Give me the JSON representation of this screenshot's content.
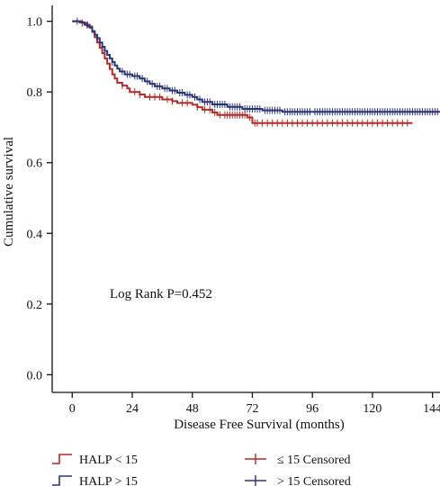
{
  "chart_data": {
    "type": "line",
    "subtype": "kaplan-meier",
    "title": "",
    "xlabel": "Disease Free Survival (months)",
    "ylabel": "Cumulative survival",
    "xlim": [
      -8,
      147
    ],
    "ylim": [
      -0.05,
      1.045
    ],
    "xticks": [
      0,
      24,
      48,
      72,
      96,
      120,
      144
    ],
    "xtick_labels": [
      "0",
      "24",
      "48",
      "72",
      "96",
      "120",
      "144"
    ],
    "yticks": [
      0.0,
      0.2,
      0.4,
      0.6,
      0.8,
      1.0
    ],
    "ytick_labels": [
      "0.0",
      "0.2",
      "0.4",
      "0.6",
      "0.8",
      "1.0"
    ],
    "grid": false,
    "annotation": "Log Rank P=0.452",
    "legend_position": "bottom",
    "series": [
      {
        "name": "HALP < 15",
        "censored_label": "≤ 15 Censored",
        "color": "#b22a2a",
        "steps": [
          [
            0,
            1.0
          ],
          [
            4,
            0.995
          ],
          [
            6,
            0.985
          ],
          [
            8,
            0.97
          ],
          [
            9,
            0.955
          ],
          [
            10,
            0.94
          ],
          [
            11,
            0.925
          ],
          [
            12,
            0.91
          ],
          [
            13,
            0.895
          ],
          [
            14,
            0.88
          ],
          [
            15,
            0.865
          ],
          [
            16,
            0.85
          ],
          [
            17,
            0.838
          ],
          [
            18,
            0.826
          ],
          [
            20,
            0.818
          ],
          [
            22,
            0.81
          ],
          [
            23,
            0.8
          ],
          [
            27,
            0.793
          ],
          [
            29,
            0.786
          ],
          [
            36,
            0.779
          ],
          [
            40,
            0.774
          ],
          [
            42,
            0.769
          ],
          [
            48,
            0.764
          ],
          [
            50,
            0.757
          ],
          [
            52,
            0.75
          ],
          [
            56,
            0.742
          ],
          [
            58,
            0.735
          ],
          [
            70,
            0.728
          ],
          [
            72,
            0.712
          ],
          [
            136,
            0.712
          ]
        ],
        "censored_x": [
          4,
          20,
          25,
          27,
          31,
          33,
          35,
          38,
          40,
          44,
          46,
          50,
          53,
          55,
          57,
          59,
          61,
          62,
          63,
          64,
          65,
          66,
          67,
          68,
          69,
          71,
          73,
          74,
          76,
          78,
          80,
          82,
          84,
          86,
          88,
          90,
          92,
          94,
          96,
          98,
          100,
          102,
          104,
          106,
          108,
          110,
          112,
          114,
          116,
          118,
          120,
          122,
          124,
          126,
          128,
          130,
          132,
          134
        ]
      },
      {
        "name": "HALP > 15",
        "censored_label": "> 15 Censored",
        "color": "#2a3478",
        "steps": [
          [
            0,
            1.0
          ],
          [
            3,
            0.997
          ],
          [
            5,
            0.99
          ],
          [
            7,
            0.982
          ],
          [
            8,
            0.972
          ],
          [
            9,
            0.962
          ],
          [
            10,
            0.952
          ],
          [
            11,
            0.94
          ],
          [
            12,
            0.928
          ],
          [
            13,
            0.916
          ],
          [
            14,
            0.905
          ],
          [
            15,
            0.895
          ],
          [
            16,
            0.885
          ],
          [
            17,
            0.875
          ],
          [
            18,
            0.866
          ],
          [
            19,
            0.858
          ],
          [
            21,
            0.85
          ],
          [
            24,
            0.845
          ],
          [
            27,
            0.838
          ],
          [
            29,
            0.83
          ],
          [
            31,
            0.823
          ],
          [
            33,
            0.816
          ],
          [
            36,
            0.81
          ],
          [
            39,
            0.804
          ],
          [
            42,
            0.798
          ],
          [
            45,
            0.792
          ],
          [
            48,
            0.786
          ],
          [
            50,
            0.779
          ],
          [
            52,
            0.772
          ],
          [
            56,
            0.765
          ],
          [
            62,
            0.758
          ],
          [
            68,
            0.752
          ],
          [
            76,
            0.748
          ],
          [
            84,
            0.744
          ],
          [
            147,
            0.744
          ]
        ],
        "censored_x": [
          2,
          6,
          10,
          16,
          20,
          22,
          23,
          25,
          26,
          28,
          30,
          32,
          34,
          35,
          37,
          38,
          40,
          41,
          43,
          44,
          46,
          47,
          49,
          51,
          53,
          54,
          55,
          57,
          58,
          59,
          60,
          61,
          63,
          64,
          65,
          66,
          67,
          69,
          70,
          71,
          72,
          73,
          74,
          75,
          77,
          78,
          79,
          80,
          81,
          82,
          83,
          85,
          86,
          87,
          88,
          89,
          90,
          91,
          92,
          93,
          94,
          95,
          97,
          98,
          99,
          100,
          101,
          102,
          103,
          104,
          105,
          106,
          107,
          108,
          109,
          110,
          111,
          112,
          113,
          114,
          115,
          116,
          117,
          118,
          119,
          120,
          121,
          122,
          123,
          124,
          125,
          126,
          127,
          128,
          129,
          130,
          131,
          132,
          133,
          134,
          135,
          136,
          137,
          138,
          139,
          140,
          141,
          142,
          143,
          144,
          145,
          146
        ]
      }
    ]
  }
}
